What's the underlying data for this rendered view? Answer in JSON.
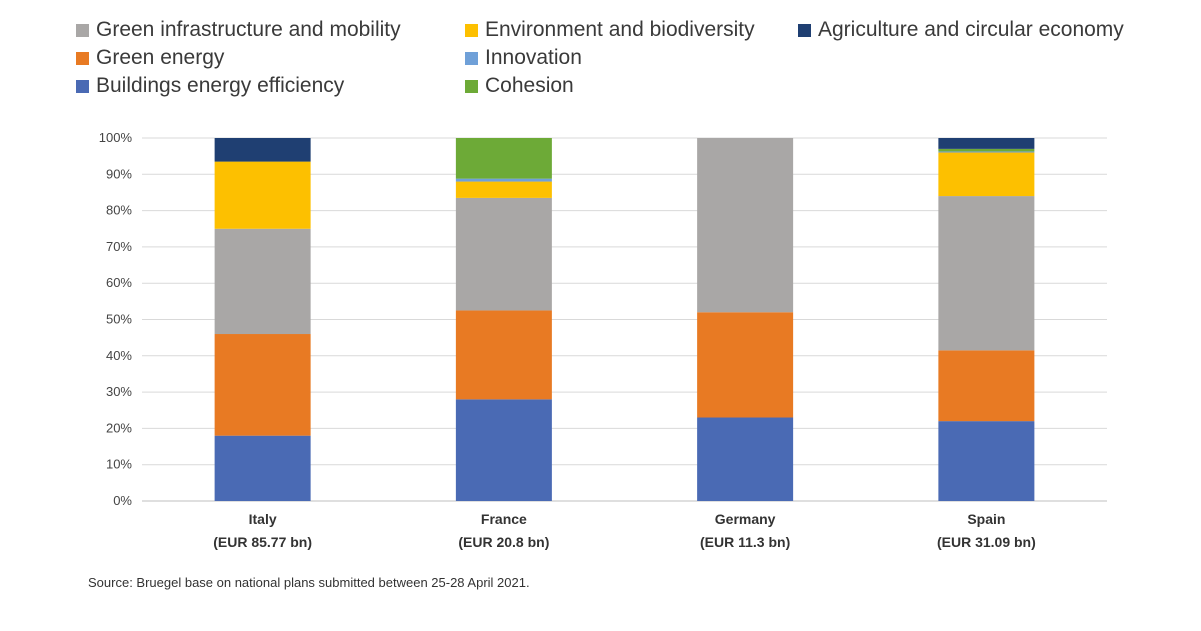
{
  "chart_data": {
    "type": "bar",
    "stacked": true,
    "normalized": true,
    "title": "",
    "xlabel": "",
    "ylabel": "",
    "ylim": [
      0,
      100
    ],
    "yticks": [
      "0%",
      "10%",
      "20%",
      "30%",
      "40%",
      "50%",
      "60%",
      "70%",
      "80%",
      "90%",
      "100%"
    ],
    "grid": true,
    "legend_position": "top",
    "categories": [
      "Italy",
      "France",
      "Germany",
      "Spain"
    ],
    "category_sublabels": [
      "(EUR 85.77 bn)",
      "(EUR 20.8 bn)",
      "(EUR 11.3 bn)",
      "(EUR 31.09 bn)"
    ],
    "series": [
      {
        "name": "Buildings energy efficiency",
        "color": "#4a6ab4",
        "values": [
          18,
          28,
          23,
          22
        ]
      },
      {
        "name": "Green energy",
        "color": "#e87a23",
        "values": [
          28,
          24.5,
          29,
          19.5
        ]
      },
      {
        "name": "Green infrastructure and mobility",
        "color": "#a9a7a6",
        "values": [
          29,
          31,
          48,
          42.5
        ]
      },
      {
        "name": "Environment and biodiversity",
        "color": "#fdc000",
        "values": [
          18.5,
          4.5,
          0,
          12
        ]
      },
      {
        "name": "Innovation",
        "color": "#6fa0d8",
        "values": [
          0,
          0.8,
          0,
          0.3
        ]
      },
      {
        "name": "Cohesion",
        "color": "#6daa37",
        "values": [
          0,
          11.2,
          0,
          0.7
        ]
      },
      {
        "name": "Agriculture and circular economy",
        "color": "#1f3f72",
        "values": [
          6.5,
          0,
          0,
          3
        ]
      }
    ],
    "legend_order": [
      "Green infrastructure and mobility",
      "Environment and biodiversity",
      "Agriculture and circular economy",
      "Green energy",
      "Innovation",
      "Buildings energy efficiency",
      "Cohesion"
    ]
  },
  "source": "Source: Bruegel base on national plans submitted between 25-28 April 2021."
}
